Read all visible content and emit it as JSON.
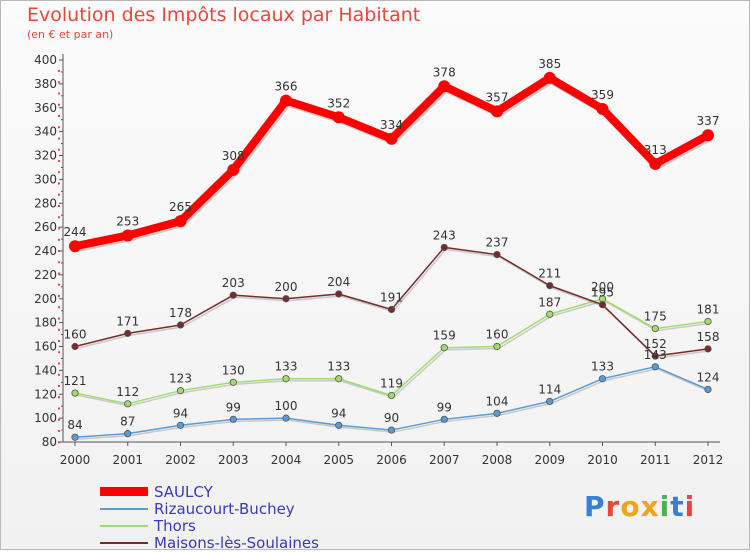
{
  "header": {
    "title": "Evolution des Impôts locaux par Habitant",
    "subtitle": "(en € et par an)"
  },
  "logo": {
    "text": "Proxiti",
    "letter_colors": [
      "#3a7fd6",
      "#e8463e",
      "#f2a51a",
      "#f2a51a",
      "#4bb34b",
      "#3a7fd6",
      "#e8463e"
    ]
  },
  "chart_data": {
    "type": "line",
    "title": "Evolution des Impôts locaux par Habitant",
    "subtitle": "(en € et par an)",
    "xlabel": "",
    "ylabel": "",
    "x": [
      "2000",
      "2001",
      "2002",
      "2003",
      "2004",
      "2005",
      "2006",
      "2007",
      "2008",
      "2009",
      "2010",
      "2011",
      "2012"
    ],
    "ylim": [
      80,
      400
    ],
    "yticks": [
      80,
      100,
      120,
      140,
      160,
      180,
      200,
      220,
      240,
      260,
      280,
      300,
      320,
      340,
      360,
      380,
      400
    ],
    "grid": false,
    "legend_position": "bottom-left",
    "series": [
      {
        "name": "SAULCY",
        "color": "#ff0000",
        "values": [
          244,
          253,
          265,
          308,
          366,
          352,
          334,
          378,
          357,
          385,
          359,
          313,
          337
        ]
      },
      {
        "name": "Rizaucourt-Buchey",
        "color": "#5a9bd5",
        "values": [
          84,
          87,
          94,
          99,
          100,
          94,
          90,
          99,
          104,
          114,
          133,
          143,
          124
        ]
      },
      {
        "name": "Thors",
        "color": "#9dde6a",
        "values": [
          121,
          112,
          123,
          130,
          133,
          133,
          119,
          159,
          160,
          187,
          200,
          175,
          181
        ]
      },
      {
        "name": "Maisons-lès-Soulaines",
        "color": "#7a2a2a",
        "values": [
          160,
          171,
          178,
          203,
          200,
          204,
          191,
          243,
          237,
          211,
          195,
          152,
          158
        ]
      }
    ],
    "point_labels": [
      [
        "244",
        "253",
        "265",
        "308",
        "366",
        "352",
        "334",
        "378",
        "357",
        "385",
        "359",
        "313",
        "337"
      ],
      [
        "84",
        "87",
        "94",
        "99",
        "100",
        "94",
        "90",
        "99",
        "104",
        "114",
        "133",
        "143",
        "124"
      ],
      [
        "121",
        "112",
        "123",
        "130",
        "133",
        "133",
        "119",
        "159",
        "160",
        "187",
        "200",
        "175",
        "181"
      ],
      [
        "160",
        "171",
        "178",
        "203",
        "200",
        "204",
        "191",
        "243",
        "237",
        "211",
        "195",
        "152",
        "158"
      ]
    ]
  }
}
